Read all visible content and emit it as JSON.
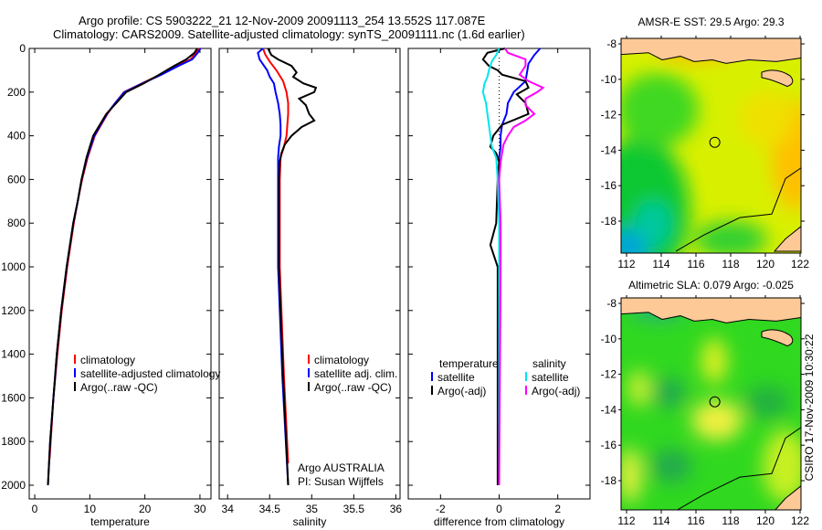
{
  "title_line1": "Argo profile: CS 5903222_21 12-Nov-2009 20091113_254 13.552S 117.087E",
  "title_line2": "Climatology: CARS2009. Satellite-adjusted climatology: synTS_20091111.nc (1.6d earlier)",
  "side_label": "CSIRO 17-Nov-2009 10:30:22",
  "colors": {
    "climatology": "#ff0000",
    "satellite": "#0000ff",
    "argo": "#000000",
    "sal_satellite": "#00e5ee",
    "sal_argo": "#ff00ff"
  },
  "chart_data": [
    {
      "type": "line",
      "xlabel": "temperature",
      "ylabel": "",
      "xlim": [
        -1,
        32
      ],
      "ylim": [
        2000,
        0
      ],
      "xticks": [
        "0",
        "10",
        "20",
        "30"
      ],
      "xtick_values": [
        0,
        10,
        20,
        30
      ],
      "yticks": [
        "0",
        "200",
        "400",
        "600",
        "800",
        "1000",
        "1200",
        "1400",
        "1600",
        "1800",
        "2000"
      ],
      "ytick_values": [
        0,
        200,
        400,
        600,
        800,
        1000,
        1200,
        1400,
        1600,
        1800,
        2000
      ],
      "legend": [
        "climatology",
        "satellite-adjusted climatology",
        "Argo(..raw -QC)"
      ],
      "series": [
        {
          "name": "climatology",
          "color": "#ff0000",
          "depth": [
            0,
            20,
            50,
            80,
            120,
            160,
            200,
            250,
            300,
            400,
            500,
            600,
            700,
            800,
            1000,
            1200,
            1400,
            1600,
            1800,
            1880
          ],
          "values": [
            29.8,
            29.3,
            28.3,
            25.8,
            22.8,
            19.5,
            16.2,
            14.6,
            13.2,
            10.9,
            9.6,
            8.6,
            7.8,
            7.1,
            5.9,
            4.9,
            4.1,
            3.4,
            2.9,
            2.7
          ]
        },
        {
          "name": "satellite",
          "color": "#0000ff",
          "depth": [
            0,
            20,
            50,
            80,
            120,
            160,
            200,
            250,
            300,
            400,
            500,
            600,
            700,
            800,
            1000,
            1200,
            1400,
            1600,
            1800,
            2000
          ],
          "values": [
            30.1,
            29.6,
            28.6,
            26.1,
            23.0,
            19.6,
            16.3,
            14.6,
            13.1,
            10.8,
            9.5,
            8.5,
            7.8,
            7.0,
            5.8,
            4.8,
            4.0,
            3.4,
            2.8,
            2.4
          ]
        },
        {
          "name": "Argo",
          "color": "#000000",
          "depth": [
            0,
            20,
            50,
            80,
            120,
            160,
            200,
            250,
            300,
            400,
            500,
            600,
            700,
            800,
            1000,
            1200,
            1400,
            1600,
            1800,
            2000
          ],
          "values": [
            29.5,
            29.0,
            27.5,
            25.3,
            22.6,
            19.8,
            16.6,
            14.8,
            13.0,
            10.6,
            9.4,
            8.5,
            7.8,
            7.0,
            5.8,
            4.8,
            4.0,
            3.4,
            2.8,
            2.4
          ]
        }
      ]
    },
    {
      "type": "line",
      "xlabel": "salinity",
      "xlim": [
        33.9,
        36.05
      ],
      "ylim": [
        2000,
        0
      ],
      "xticks": [
        "34",
        "34.5",
        "35",
        "35.5",
        "36"
      ],
      "xtick_values": [
        34,
        34.5,
        35,
        35.5,
        36
      ],
      "legend": [
        "climatology",
        "satellite adj. clim.",
        "Argo(..raw -QC)"
      ],
      "annotation": [
        "Argo AUSTRALIA",
        "PI: Susan Wijffels"
      ],
      "series": [
        {
          "name": "climatology",
          "color": "#ff0000",
          "depth": [
            0,
            30,
            60,
            100,
            150,
            200,
            250,
            300,
            350,
            400,
            450,
            500,
            600,
            1000,
            1500,
            1900
          ],
          "values": [
            34.42,
            34.45,
            34.5,
            34.58,
            34.66,
            34.7,
            34.72,
            34.72,
            34.71,
            34.7,
            34.67,
            34.63,
            34.62,
            34.62,
            34.67,
            34.72
          ]
        },
        {
          "name": "satellite",
          "color": "#0000ff",
          "depth": [
            0,
            20,
            50,
            100,
            130,
            160,
            200,
            250,
            300,
            350,
            400,
            450,
            500,
            600,
            1000,
            1500,
            2000
          ],
          "values": [
            34.42,
            34.36,
            34.38,
            34.47,
            34.5,
            34.55,
            34.57,
            34.6,
            34.62,
            34.63,
            34.63,
            34.61,
            34.6,
            34.6,
            34.6,
            34.65,
            34.72
          ]
        },
        {
          "name": "Argo",
          "color": "#000000",
          "depth": [
            0,
            30,
            50,
            80,
            110,
            130,
            160,
            180,
            200,
            230,
            260,
            300,
            330,
            360,
            400,
            440,
            480,
            520,
            600,
            1000,
            1500,
            2000
          ],
          "values": [
            34.48,
            34.52,
            34.6,
            34.76,
            34.82,
            34.78,
            34.9,
            35.05,
            35.03,
            34.85,
            34.93,
            34.97,
            35.03,
            34.88,
            34.76,
            34.68,
            34.64,
            34.62,
            34.61,
            34.61,
            34.66,
            34.72
          ]
        }
      ]
    },
    {
      "type": "line",
      "xlabel": "difference from climatology",
      "xlim": [
        -3.1,
        3.1
      ],
      "ylim": [
        2000,
        0
      ],
      "xticks": [
        "-2",
        "0",
        "2"
      ],
      "xtick_values": [
        -2,
        0,
        2
      ],
      "legend": [
        "temperature",
        "satellite",
        "Argo(-adj)",
        "salinity",
        "satellite",
        "Argo(-adj)"
      ],
      "series": [
        {
          "name": "temperature satellite",
          "color": "#0000ff",
          "depth": [
            0,
            30,
            70,
            110,
            150,
            200,
            250,
            300,
            350,
            400,
            450,
            500,
            600,
            800,
            1000,
            2000
          ],
          "values": [
            1.4,
            1.2,
            1.0,
            0.95,
            0.9,
            0.5,
            0.3,
            0.25,
            0.1,
            0.05,
            0.05,
            0.0,
            0.0,
            0.0,
            0.0,
            0.0
          ]
        },
        {
          "name": "temperature Argo",
          "color": "#000000",
          "depth": [
            0,
            20,
            50,
            80,
            100,
            120,
            150,
            180,
            210,
            250,
            300,
            350,
            400,
            450,
            480,
            520,
            600,
            800,
            900,
            1000,
            2000
          ],
          "values": [
            0.2,
            -0.4,
            -0.55,
            -0.35,
            -0.05,
            0.1,
            0.9,
            1.0,
            0.6,
            0.9,
            1.0,
            0.1,
            -0.2,
            -0.3,
            -0.1,
            0.0,
            -0.05,
            -0.1,
            -0.3,
            -0.05,
            -0.05
          ]
        },
        {
          "name": "salinity satellite",
          "color": "#00e5ee",
          "depth": [
            0,
            30,
            60,
            100,
            130,
            160,
            200,
            250,
            300,
            350,
            400,
            450,
            500,
            600,
            800,
            2000
          ],
          "values": [
            0.0,
            -0.1,
            -0.25,
            -0.35,
            -0.4,
            -0.5,
            -0.55,
            -0.45,
            -0.4,
            -0.35,
            -0.3,
            -0.25,
            -0.1,
            -0.05,
            0.0,
            0.0
          ]
        },
        {
          "name": "salinity Argo",
          "color": "#ff00ff",
          "depth": [
            0,
            20,
            50,
            80,
            120,
            150,
            180,
            200,
            230,
            260,
            300,
            330,
            360,
            400,
            440,
            480,
            520,
            600,
            800,
            1000,
            2000
          ],
          "values": [
            0.2,
            0.3,
            0.9,
            0.9,
            0.7,
            1.0,
            1.5,
            1.3,
            0.9,
            0.9,
            1.2,
            0.9,
            0.5,
            0.3,
            0.15,
            0.1,
            0.05,
            0.0,
            0.05,
            0.05,
            0.0
          ]
        }
      ]
    },
    {
      "type": "heatmap",
      "title": "AMSR-E SST: 29.5 Argo: 29.3",
      "xlim": [
        111.8,
        122.3
      ],
      "ylim": [
        -19.6,
        -7.6
      ],
      "xticks": [
        "112",
        "114",
        "116",
        "118",
        "120",
        "122"
      ],
      "yticks": [
        "-8",
        "-10",
        "-12",
        "-14",
        "-16",
        "-18"
      ],
      "marker": {
        "lon": 117.087,
        "lat": -13.552
      }
    },
    {
      "type": "heatmap",
      "title": "Altimetric SLA: 0.079 Argo: -0.025",
      "xlim": [
        111.8,
        122.3
      ],
      "ylim": [
        -19.6,
        -7.6
      ],
      "xticks": [
        "112",
        "114",
        "116",
        "118",
        "120",
        "122"
      ],
      "yticks": [
        "-8",
        "-10",
        "-12",
        "-14",
        "-16",
        "-18"
      ],
      "marker": {
        "lon": 117.087,
        "lat": -13.552
      }
    }
  ]
}
